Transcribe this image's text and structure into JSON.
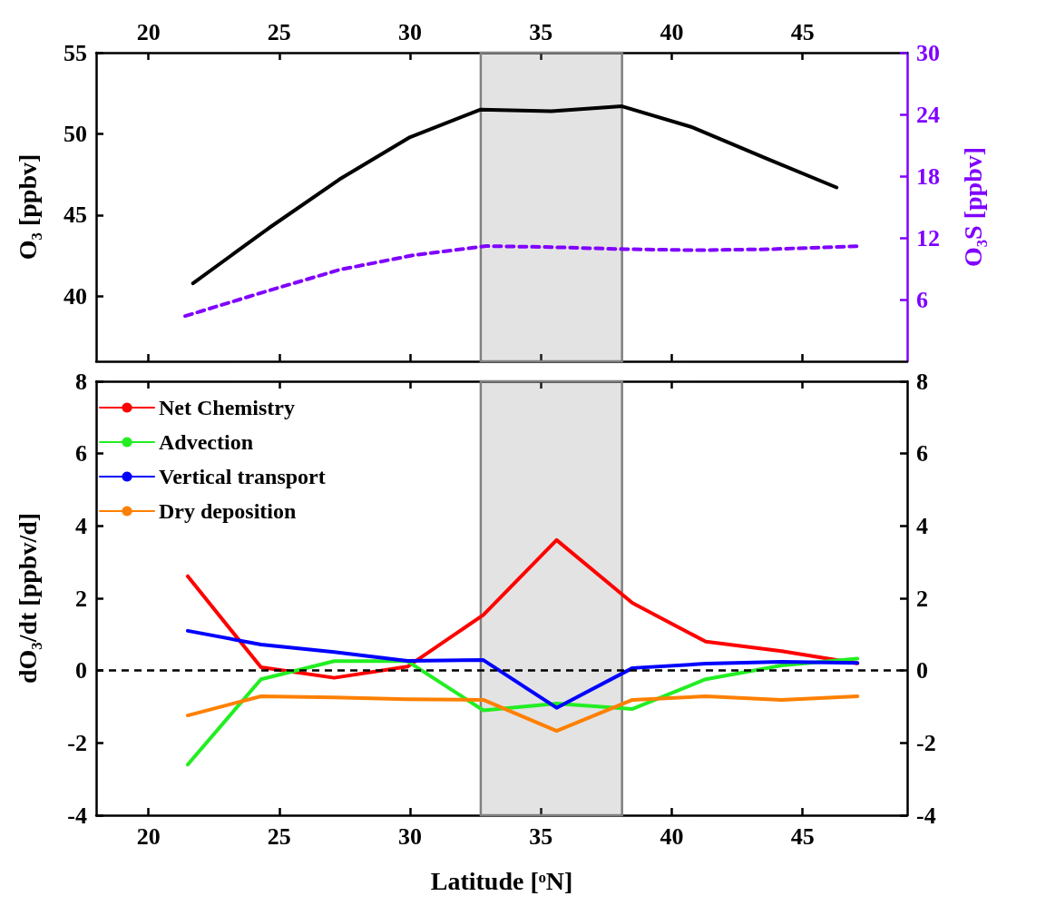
{
  "chart_data": [
    {
      "type": "line",
      "ylabel": "O₃ [ppbv]",
      "y2label": "O₃S [ppbv]",
      "xlim": [
        18,
        49
      ],
      "xticks": [
        20,
        25,
        30,
        35,
        40,
        45
      ],
      "x2lim": [
        18,
        49
      ],
      "x2ticks": [
        20,
        25,
        30,
        35,
        40,
        45
      ],
      "tick_labels": "y",
      "ylim": [
        36,
        55
      ],
      "yticks": [
        40,
        45,
        50,
        55
      ],
      "y2lim": [
        0,
        30
      ],
      "y2ticks": [
        6,
        12,
        18,
        24,
        30
      ],
      "grid": false,
      "legend": false,
      "marker": "none",
      "bands": [
        {
          "axis": "x",
          "from": 32.7,
          "to": 38.1,
          "color": "#808080"
        }
      ],
      "series": [
        {
          "color": "#000000",
          "line_style": "solid",
          "x": [
            21.7,
            24.6,
            27.3,
            30.0,
            32.7,
            35.4,
            38.1,
            40.8,
            43.6,
            46.3
          ],
          "values": [
            40.8,
            44.2,
            47.2,
            49.8,
            51.5,
            51.4,
            51.7,
            50.4,
            48.5,
            46.7
          ]
        },
        {
          "color": "#8000ff",
          "line_style": "dashed",
          "axis": "y2",
          "x": [
            21.4,
            24.5,
            27.3,
            30.1,
            32.9,
            35.4,
            38.2,
            41.0,
            43.8,
            47.2
          ],
          "values": [
            4.4,
            6.8,
            8.9,
            10.3,
            11.2,
            11.1,
            10.9,
            10.8,
            10.9,
            11.2
          ]
        }
      ]
    },
    {
      "type": "line",
      "xlabel": "Latitude [ᵒN]",
      "ylabel": "dO₃/dt [ppbv/d]",
      "xlim": [
        18,
        49
      ],
      "xticks": [
        20,
        25,
        30,
        35,
        40,
        45
      ],
      "ylim": [
        -4,
        8
      ],
      "yticks": [
        -4,
        -2,
        0,
        2,
        4,
        6,
        8
      ],
      "y2lim": [
        -4,
        8
      ],
      "y2ticks": [
        -4,
        -2,
        0,
        2,
        4,
        6,
        8
      ],
      "grid": false,
      "legend": "top left",
      "marker": "none",
      "line_style": "solid",
      "x": [
        21.5,
        24.3,
        27.1,
        29.9,
        32.8,
        35.6,
        38.5,
        41.3,
        44.2,
        47.1
      ],
      "bands": [
        {
          "axis": "x",
          "from": 32.7,
          "to": 38.1,
          "color": "#808080"
        }
      ],
      "ref_lines": [
        {
          "axis": "y",
          "value": 0,
          "color": "#000000",
          "line_style": "dashed"
        }
      ],
      "series": [
        {
          "name": "Net Chemistry",
          "color": "#ff0000",
          "values": [
            2.61,
            0.09,
            -0.2,
            0.11,
            1.54,
            3.61,
            1.87,
            0.8,
            0.54,
            0.2
          ]
        },
        {
          "name": "Advection",
          "color": "#22ee22",
          "values": [
            -2.6,
            -0.24,
            0.26,
            0.26,
            -1.1,
            -0.91,
            -1.06,
            -0.24,
            0.14,
            0.33
          ]
        },
        {
          "name": "Vertical transport",
          "color": "#0000ff",
          "values": [
            1.1,
            0.72,
            0.51,
            0.27,
            0.29,
            -1.03,
            0.07,
            0.19,
            0.24,
            0.21
          ]
        },
        {
          "name": "Dry deposition",
          "color": "#ff8000",
          "values": [
            -1.24,
            -0.71,
            -0.74,
            -0.79,
            -0.81,
            -1.67,
            -0.81,
            -0.71,
            -0.81,
            -0.71
          ]
        }
      ]
    }
  ]
}
